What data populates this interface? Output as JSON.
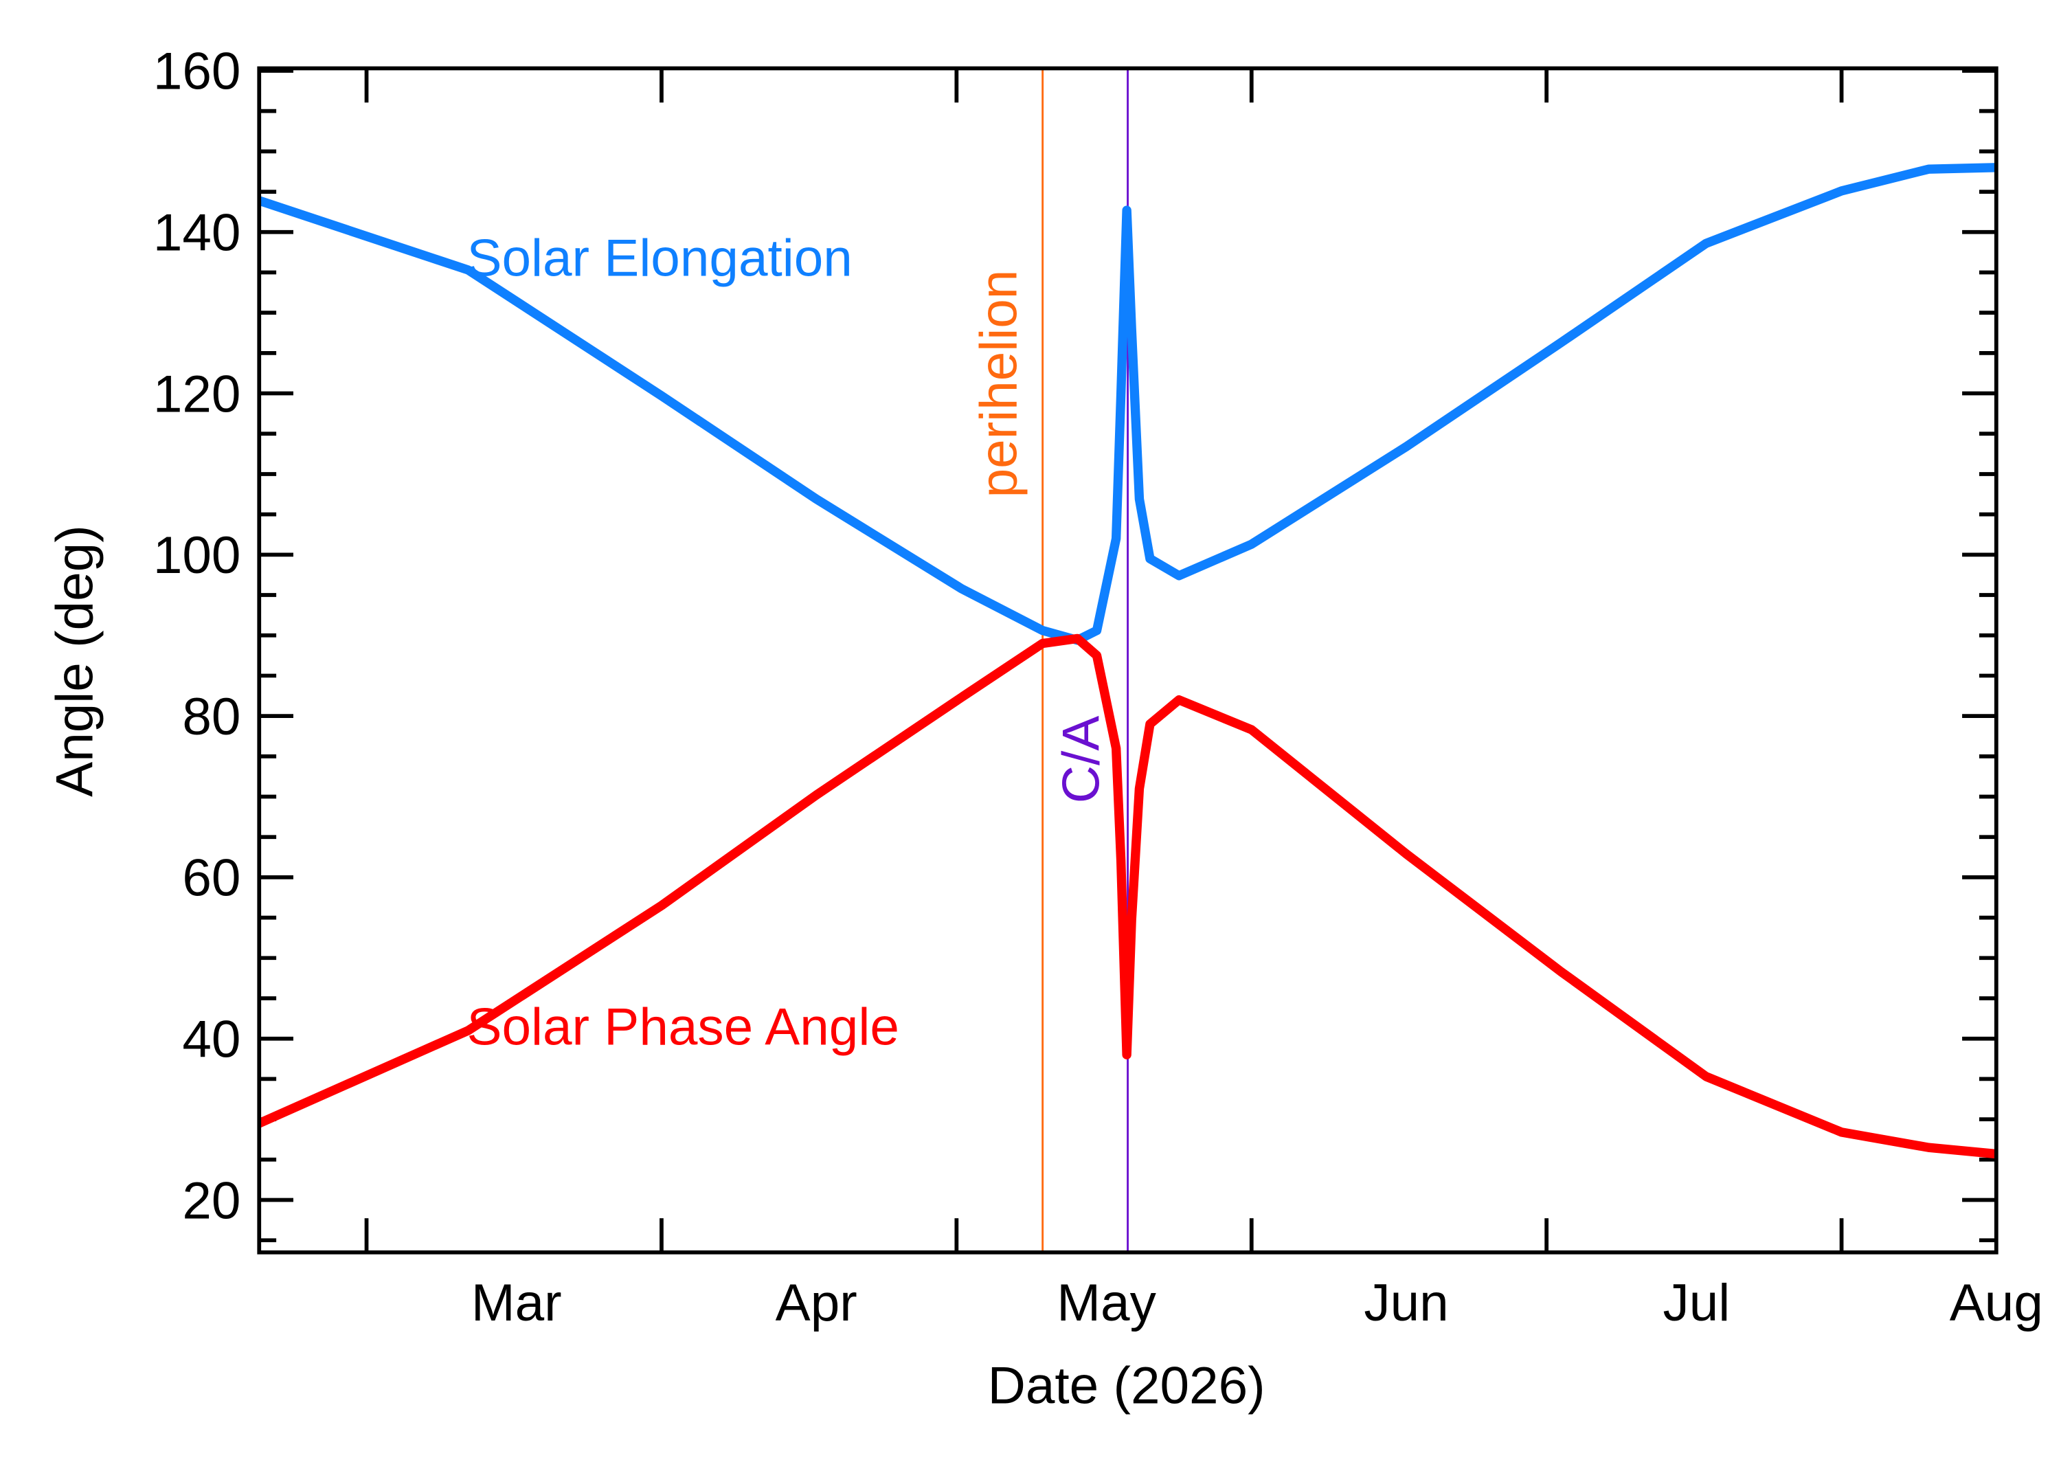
{
  "chart_data": {
    "type": "line",
    "xlabel": "Date (2026)",
    "ylabel": "Angle (deg)",
    "x": [
      33.4,
      55,
      75,
      91,
      106,
      114.4,
      118,
      120,
      122,
      122.5,
      123.1,
      123.6,
      124.4,
      125.5,
      128.5,
      136,
      152,
      168,
      183,
      197,
      206,
      213
    ],
    "series": [
      {
        "name": "Solar Elongation",
        "color": "#0f80ff",
        "values": [
          143.9,
          135.3,
          119.7,
          106.9,
          95.8,
          90.6,
          89.4,
          90.6,
          102,
          120,
          142.7,
          128,
          106.9,
          99.5,
          97.4,
          101.3,
          113.4,
          126.3,
          138.6,
          145.1,
          147.8,
          148
        ]
      },
      {
        "name": "Solar Phase Angle",
        "color": "#ff0000",
        "values": [
          29.5,
          41,
          56.5,
          70.2,
          82.3,
          89,
          89.6,
          87.5,
          76,
          62,
          38,
          54.7,
          71,
          79,
          82,
          78.3,
          62.9,
          48.3,
          35.3,
          28.4,
          26.5,
          25.7
        ]
      }
    ],
    "xlim": [
      33.4,
      213
    ],
    "ylim": [
      13.5,
      160.3
    ],
    "xticks": [
      {
        "value": 60,
        "label": "Mar"
      },
      {
        "value": 91,
        "label": "Apr"
      },
      {
        "value": 121,
        "label": "May"
      },
      {
        "value": 152,
        "label": "Jun"
      },
      {
        "value": 182,
        "label": "Jul"
      },
      {
        "value": 213,
        "label": "Aug"
      }
    ],
    "yticks": [
      20,
      40,
      60,
      80,
      100,
      120,
      140,
      160
    ],
    "annotations": [
      {
        "text": "perihelion",
        "x": 114.4,
        "color": "#ff6a10"
      },
      {
        "text": "C/A",
        "x": 123.2,
        "color": "#6a10d0"
      }
    ]
  }
}
